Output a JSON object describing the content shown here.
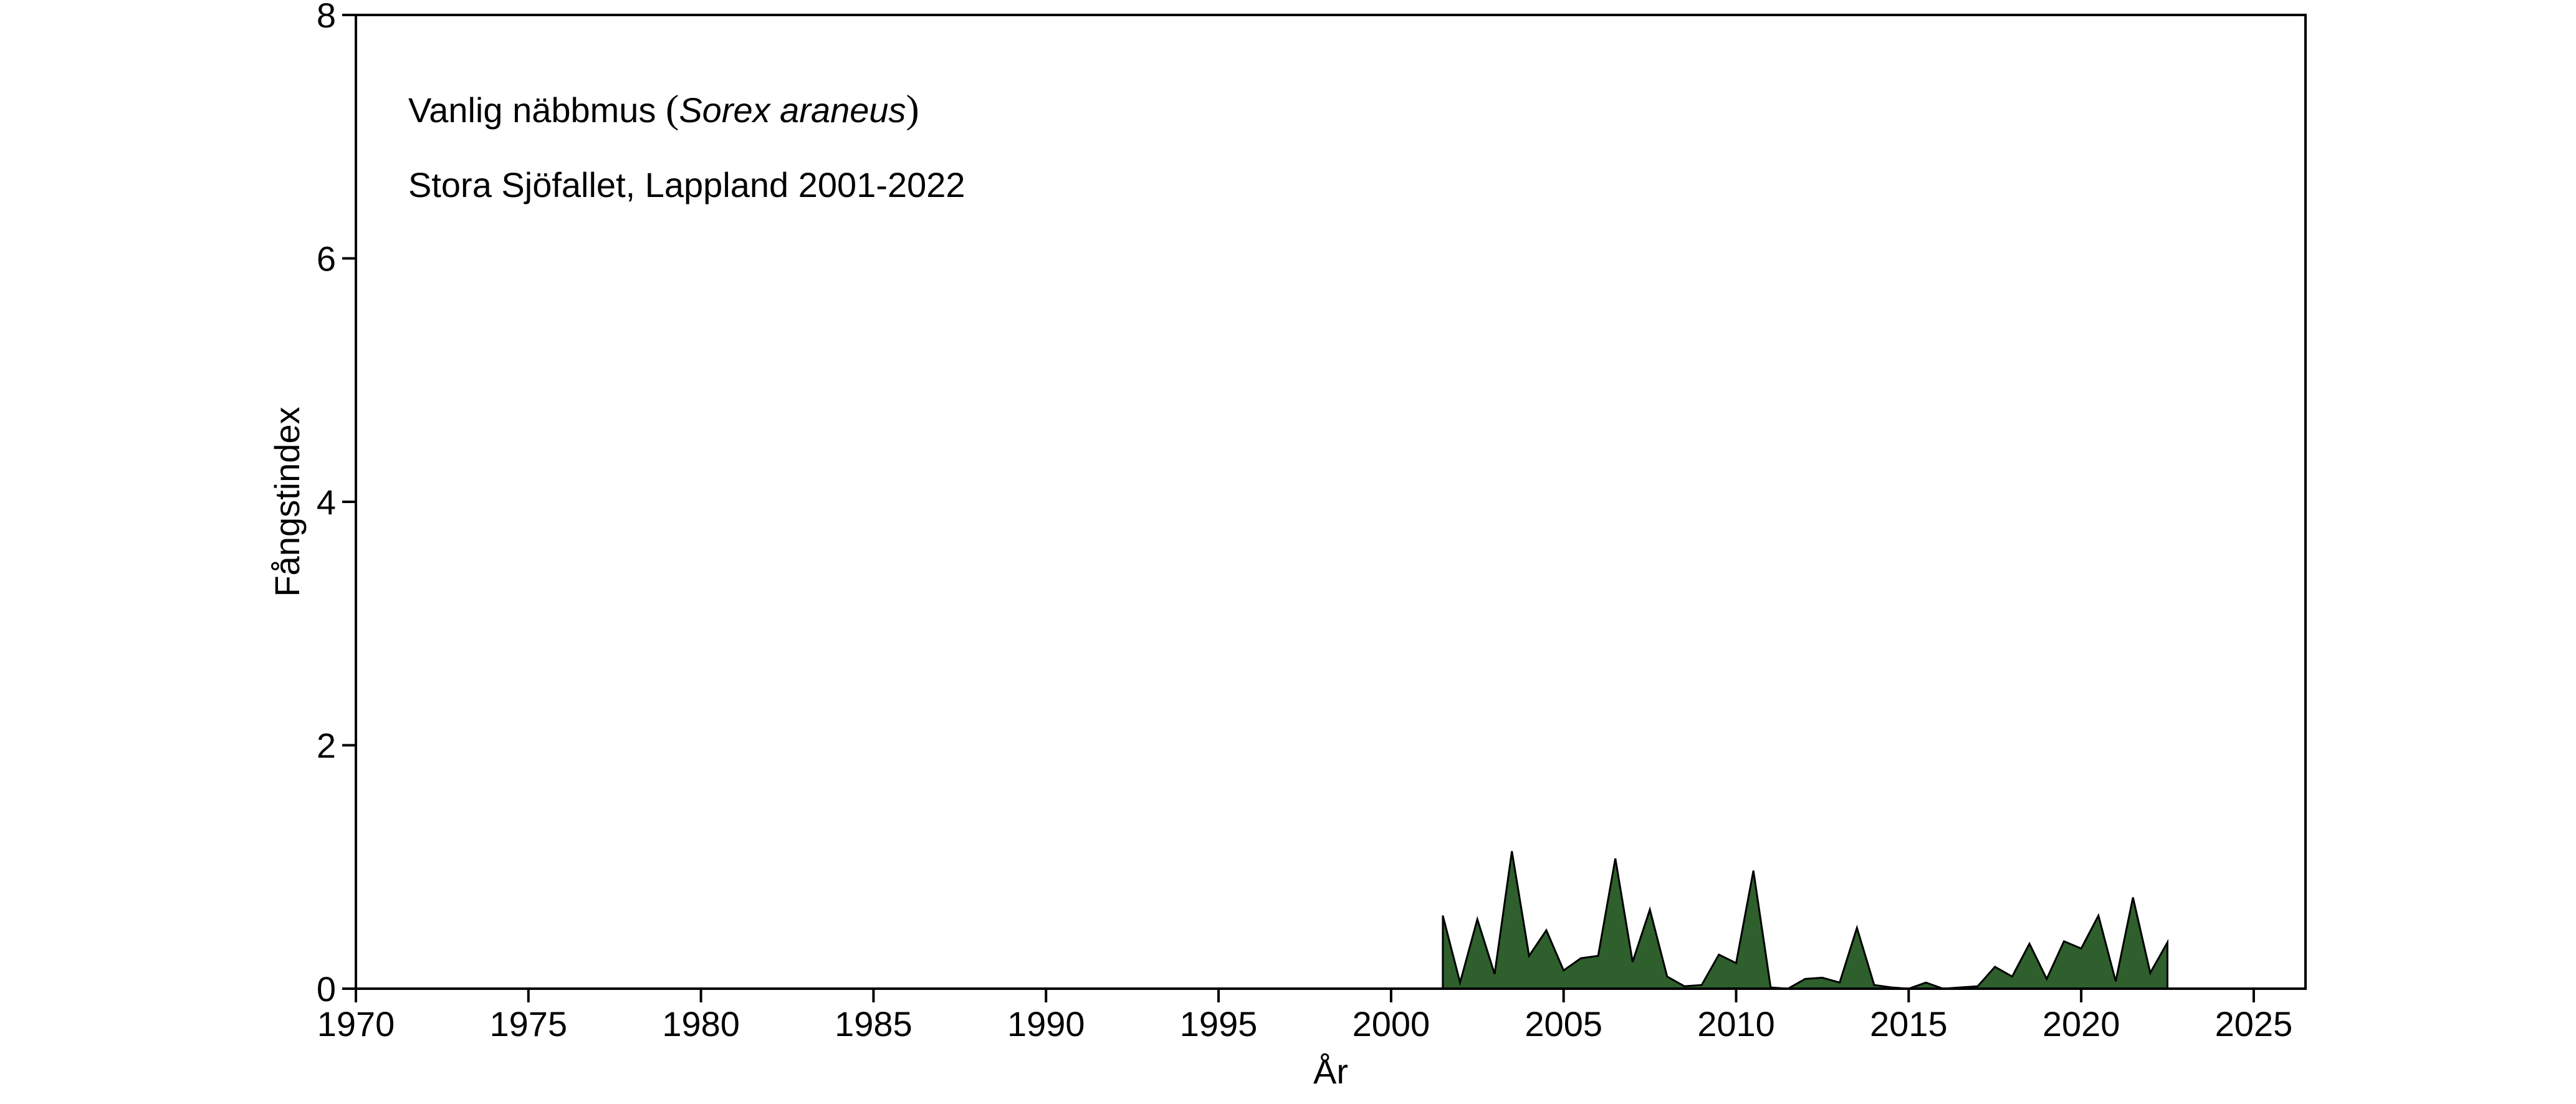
{
  "chart_data": {
    "type": "area",
    "annotation": {
      "species_common": "Vanlig näbbmus",
      "species_latin": "Sorex araneus",
      "open_paren": "(",
      "close_paren": ")",
      "location": "Stora Sjöfallet, Lappland 2001-2022"
    },
    "xlabel": "År",
    "ylabel": "Fångstindex",
    "xlim": [
      1970,
      2026.5
    ],
    "ylim": [
      0,
      8
    ],
    "x_ticks": [
      1970,
      1975,
      1980,
      1985,
      1990,
      1995,
      2000,
      2005,
      2010,
      2015,
      2020,
      2025
    ],
    "y_ticks": [
      0,
      2,
      4,
      6,
      8
    ],
    "fill_color": "#2e5f2c",
    "line_color": "#000000",
    "grid": false,
    "series": [
      {
        "x": [
          2001.5,
          2002.0,
          2002.5,
          2003.0,
          2003.5,
          2004.0,
          2004.5,
          2005.0,
          2005.5,
          2006.0,
          2006.5,
          2007.0,
          2007.5,
          2008.0,
          2008.5,
          2009.0,
          2009.5,
          2010.0,
          2010.5,
          2011.0,
          2011.5,
          2012.0,
          2012.5,
          2013.0,
          2013.5,
          2014.0,
          2014.5,
          2015.0,
          2015.5,
          2016.0,
          2016.5,
          2017.0,
          2017.5,
          2018.0,
          2018.5,
          2019.0,
          2019.5,
          2020.0,
          2020.5,
          2021.0,
          2021.5,
          2022.0,
          2022.5
        ],
        "values": [
          0.6,
          0.05,
          0.57,
          0.12,
          1.13,
          0.27,
          0.48,
          0.15,
          0.25,
          0.27,
          1.07,
          0.22,
          0.65,
          0.1,
          0.02,
          0.03,
          0.28,
          0.21,
          0.97,
          0.01,
          0.0,
          0.08,
          0.09,
          0.05,
          0.5,
          0.03,
          0.01,
          0.0,
          0.05,
          0.0,
          0.01,
          0.02,
          0.18,
          0.1,
          0.37,
          0.08,
          0.39,
          0.33,
          0.6,
          0.06,
          0.75,
          0.13,
          0.38
        ]
      }
    ]
  }
}
